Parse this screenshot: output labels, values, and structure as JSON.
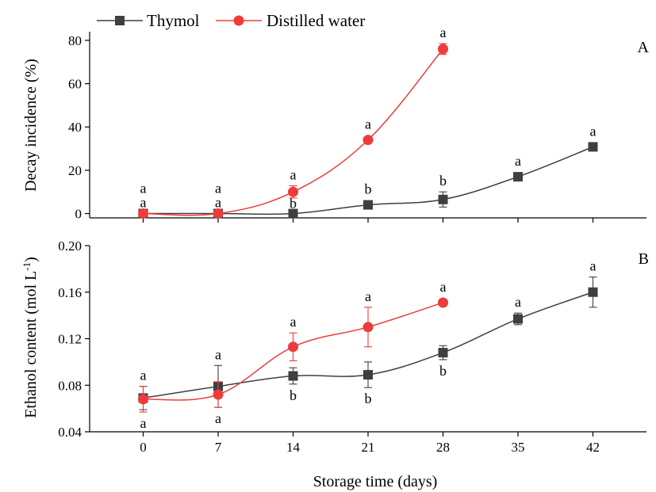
{
  "legend": {
    "thymol_label": "Thymol",
    "water_label": "Distilled water"
  },
  "colors": {
    "thymol": "#3f3f3f",
    "water": "#ee3b3b",
    "axis": "#000000"
  },
  "chart_data": [
    {
      "type": "line",
      "panel_label": "A",
      "ylabel": "Decay incidence (%)",
      "xlabel": "",
      "ylim": [
        -2,
        84
      ],
      "yticks": [
        0,
        20,
        40,
        60,
        80
      ],
      "xlim": [
        -5,
        47
      ],
      "xticks": [
        0,
        7,
        14,
        21,
        28,
        35,
        42
      ],
      "legend_position": "top-left",
      "series": [
        {
          "name": "Thymol",
          "marker": "square",
          "x": [
            0,
            7,
            14,
            21,
            28,
            35,
            42
          ],
          "y": [
            0,
            0,
            0,
            4,
            6.5,
            17,
            30.8
          ],
          "err": [
            0,
            0,
            0,
            0,
            3.5,
            0,
            0
          ],
          "labels": [
            "a",
            "a",
            "b",
            "b",
            "b",
            "a",
            "a"
          ],
          "label_side": [
            "above",
            "above",
            "above",
            "above",
            "above",
            "above",
            "above"
          ]
        },
        {
          "name": "Distilled water",
          "marker": "circle",
          "x": [
            0,
            7,
            14,
            21,
            28
          ],
          "y": [
            0,
            0,
            10,
            34,
            76
          ],
          "err": [
            0,
            0,
            2.8,
            0,
            2.5
          ],
          "labels": [
            "a",
            "a",
            "a",
            "a",
            "a"
          ],
          "label_side": [
            "above",
            "above",
            "above",
            "above",
            "above"
          ]
        }
      ]
    },
    {
      "type": "line",
      "panel_label": "B",
      "ylabel": "Ethanol content (mol L-1)",
      "xlabel": "Storage time (days)",
      "ylim": [
        0.04,
        0.2
      ],
      "yticks": [
        0.04,
        0.08,
        0.12,
        0.16,
        0.2
      ],
      "ytick_labels": [
        "0.04",
        "0.08",
        "0.12",
        "0.16",
        "0.20"
      ],
      "xlim": [
        -5,
        47
      ],
      "xticks": [
        0,
        7,
        14,
        21,
        28,
        35,
        42
      ],
      "series": [
        {
          "name": "Thymol",
          "marker": "square",
          "x": [
            0,
            7,
            14,
            21,
            28,
            35,
            42
          ],
          "y": [
            0.069,
            0.079,
            0.088,
            0.089,
            0.108,
            0.137,
            0.16
          ],
          "err": [
            0.01,
            0.018,
            0.007,
            0.011,
            0.006,
            0.005,
            0.013
          ],
          "labels": [
            "a",
            "a",
            "b",
            "b",
            "b",
            "a",
            "a"
          ],
          "label_side": [
            "above",
            "above",
            "below",
            "below",
            "below",
            "above",
            "above"
          ]
        },
        {
          "name": "Distilled water",
          "marker": "circle",
          "x": [
            0,
            7,
            14,
            21,
            28
          ],
          "y": [
            0.068,
            0.072,
            0.113,
            0.13,
            0.151
          ],
          "err": [
            0.011,
            0.011,
            0.012,
            0.017,
            0.003
          ],
          "labels": [
            "a",
            "a",
            "a",
            "a",
            "a"
          ],
          "label_side": [
            "below",
            "below",
            "above",
            "above",
            "above"
          ]
        }
      ]
    }
  ]
}
